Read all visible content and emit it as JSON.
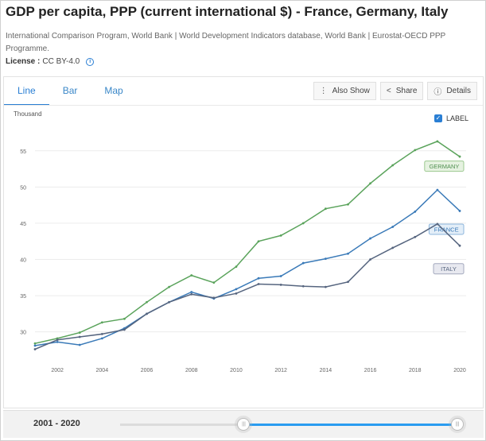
{
  "header": {
    "title": "GDP per capita, PPP (current international $) - France, Germany, Italy",
    "source": "International Comparison Program, World Bank | World Development Indicators database, World Bank | Eurostat-OECD PPP Programme.",
    "license_label": "License :",
    "license_value": "CC BY-4.0"
  },
  "tabs": [
    {
      "label": "Line",
      "active": true
    },
    {
      "label": "Bar",
      "active": false
    },
    {
      "label": "Map",
      "active": false
    }
  ],
  "actions": {
    "also_show": "Also Show",
    "share": "Share",
    "details": "Details"
  },
  "label_toggle": {
    "label": "LABEL",
    "checked": true
  },
  "footer": {
    "range_label": "2001 - 2020",
    "range_start": 2001,
    "range_end": 2020,
    "range_min": 1990,
    "range_max": 2020
  },
  "chart_data": {
    "type": "line",
    "title": "",
    "ylabel": "Thousand",
    "xlabel": "",
    "x": [
      2001,
      2002,
      2003,
      2004,
      2005,
      2006,
      2007,
      2008,
      2009,
      2010,
      2011,
      2012,
      2013,
      2014,
      2015,
      2016,
      2017,
      2018,
      2019,
      2020
    ],
    "xticks": [
      "2002",
      "2004",
      "2006",
      "2008",
      "2010",
      "2012",
      "2014",
      "2016",
      "2018",
      "2020"
    ],
    "yticks": [
      "30",
      "35",
      "40",
      "45",
      "50",
      "55"
    ],
    "ylim": [
      27,
      57.5
    ],
    "grid": "horizontal",
    "series": [
      {
        "name": "GERMANY",
        "color": "#5aa35b",
        "values": [
          28.4,
          29.1,
          29.9,
          31.3,
          31.8,
          34.1,
          36.2,
          37.8,
          36.8,
          39.0,
          42.5,
          43.3,
          45.0,
          47.0,
          47.6,
          50.5,
          53.0,
          55.1,
          56.3,
          54.2
        ]
      },
      {
        "name": "FRANCE",
        "color": "#3a7ab8",
        "values": [
          28.1,
          28.6,
          28.2,
          29.1,
          30.5,
          32.5,
          34.1,
          35.5,
          34.6,
          35.9,
          37.4,
          37.7,
          39.5,
          40.1,
          40.8,
          42.9,
          44.5,
          46.6,
          49.6,
          46.7
        ]
      },
      {
        "name": "ITALY",
        "color": "#56657f",
        "values": [
          27.6,
          28.9,
          29.3,
          29.7,
          30.3,
          32.5,
          34.1,
          35.2,
          34.7,
          35.3,
          36.6,
          36.5,
          36.3,
          36.2,
          36.9,
          40.0,
          41.6,
          43.1,
          44.9,
          41.9
        ]
      }
    ]
  }
}
